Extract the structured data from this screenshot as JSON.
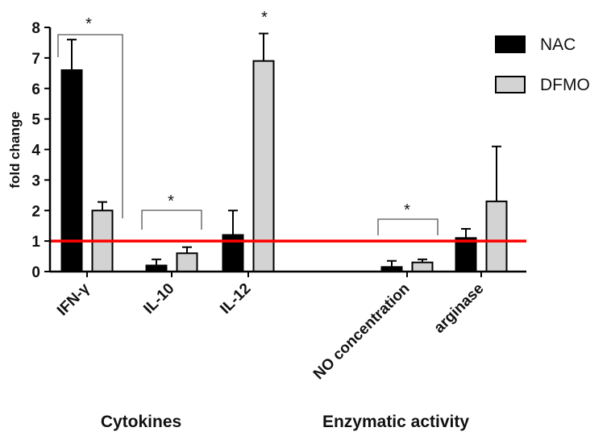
{
  "chart_data": {
    "type": "bar",
    "title": "",
    "xlabel": "",
    "ylabel": "fold change",
    "ylim": [
      0,
      8
    ],
    "yticks": [
      "0",
      "1",
      "2",
      "3",
      "4",
      "5",
      "6",
      "7",
      "8"
    ],
    "categories": [
      "IFN-γ",
      "IL-10",
      "IL-12",
      "NO concentration",
      "arginase"
    ],
    "groups": [
      {
        "label": "Cytokines",
        "categories": [
          "IFN-γ",
          "IL-10",
          "IL-12"
        ]
      },
      {
        "label": "Enzymatic activity",
        "categories": [
          "NO concentration",
          "arginase"
        ]
      }
    ],
    "series": [
      {
        "name": "NAC",
        "color": "#000000",
        "values": [
          6.6,
          0.2,
          1.2,
          0.15,
          1.1
        ],
        "errors": [
          1.0,
          0.2,
          0.8,
          0.2,
          0.3
        ]
      },
      {
        "name": "DFMO",
        "color": "#d3d3d3",
        "values": [
          2.0,
          0.6,
          6.9,
          0.3,
          2.3
        ],
        "errors": [
          0.28,
          0.2,
          0.9,
          0.1,
          1.8
        ]
      }
    ],
    "reference_line": {
      "value": 1,
      "color": "#ff0000"
    },
    "significance": [
      {
        "label": "*",
        "type": "bracket",
        "category": "IFN-γ"
      },
      {
        "label": "*",
        "type": "bracket",
        "category": "IL-10"
      },
      {
        "label": "*",
        "type": "single",
        "category": "IL-12"
      },
      {
        "label": "*",
        "type": "bracket",
        "category": "NO concentration"
      }
    ],
    "legend": "top-right"
  }
}
